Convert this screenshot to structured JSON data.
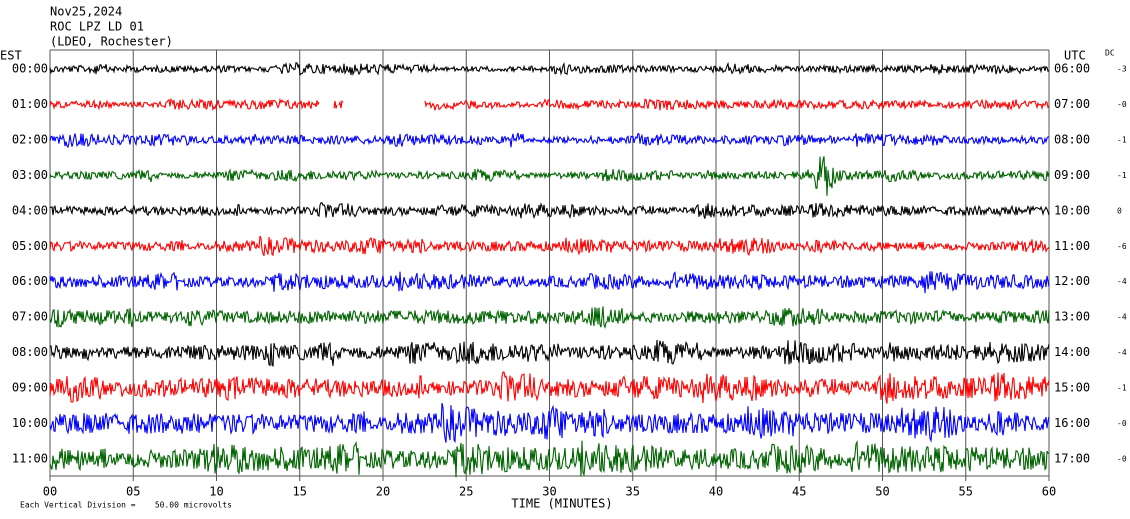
{
  "header": {
    "lines": [
      "Nov25,2024",
      "ROC LPZ LD 01",
      "(LDEO, Rochester)"
    ]
  },
  "left_zone": "EST",
  "right_zone": "UTC",
  "dc_label": "DC",
  "rows": [
    {
      "est": "00:00",
      "utc": "06:00",
      "dc": "-3",
      "color": "#000000"
    },
    {
      "est": "01:00",
      "utc": "07:00",
      "dc": "-0",
      "color": "#ff0000"
    },
    {
      "est": "02:00",
      "utc": "08:00",
      "dc": "-1",
      "color": "#0000ff"
    },
    {
      "est": "03:00",
      "utc": "09:00",
      "dc": "-1",
      "color": "#006400"
    },
    {
      "est": "04:00",
      "utc": "10:00",
      "dc": "0",
      "color": "#000000"
    },
    {
      "est": "05:00",
      "utc": "11:00",
      "dc": "-6",
      "color": "#ff0000"
    },
    {
      "est": "06:00",
      "utc": "12:00",
      "dc": "-4",
      "color": "#0000ff"
    },
    {
      "est": "07:00",
      "utc": "13:00",
      "dc": "-4",
      "color": "#006400"
    },
    {
      "est": "08:00",
      "utc": "14:00",
      "dc": "-4",
      "color": "#000000"
    },
    {
      "est": "09:00",
      "utc": "15:00",
      "dc": "-1",
      "color": "#ff0000"
    },
    {
      "est": "10:00",
      "utc": "16:00",
      "dc": "-0",
      "color": "#0000ff"
    },
    {
      "est": "11:00",
      "utc": "17:00",
      "dc": "-0",
      "color": "#006400"
    }
  ],
  "x_axis": {
    "label": "TIME (MINUTES)",
    "lim": [
      0,
      60
    ],
    "ticks": [
      {
        "value": 0,
        "label": "00"
      },
      {
        "value": 5,
        "label": "05"
      },
      10,
      15,
      20,
      25,
      30,
      35,
      40,
      45,
      50,
      55,
      60
    ]
  },
  "footer": "Each Vertical Division =    50.00 microvolts"
}
